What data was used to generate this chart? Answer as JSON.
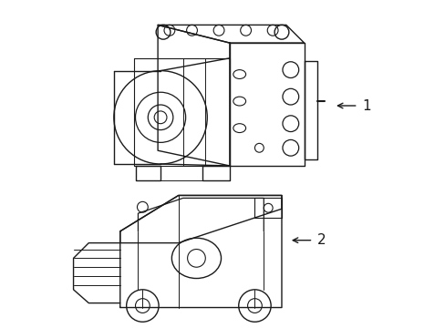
{
  "background_color": "#ffffff",
  "line_color": "#1a1a1a",
  "line_width": 1.0,
  "label1": "1",
  "label2": "2",
  "figsize": [
    4.89,
    3.6
  ],
  "dpi": 100
}
